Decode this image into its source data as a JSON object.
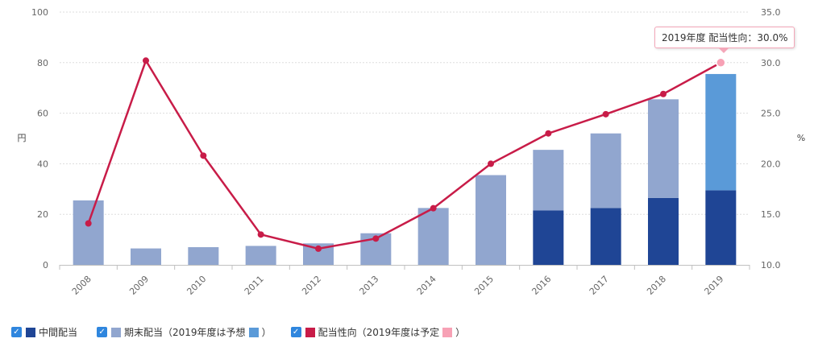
{
  "chart_data": {
    "type": "bar",
    "categories": [
      "2008",
      "2009",
      "2010",
      "2011",
      "2012",
      "2013",
      "2014",
      "2015",
      "2016",
      "2017",
      "2018",
      "2019"
    ],
    "series": [
      {
        "name": "中間配当",
        "color": "#1f4595",
        "values": [
          0,
          0,
          0,
          0,
          0,
          0,
          0,
          0,
          21.5,
          22.5,
          26.5,
          29.5
        ]
      },
      {
        "name": "期末配当",
        "color": "#91a6cf",
        "values": [
          25.5,
          6.5,
          7,
          7.5,
          8.5,
          12.5,
          22.5,
          35.5,
          24,
          29.5,
          39,
          0
        ]
      },
      {
        "name": "期末配当 (2019年度は予想)",
        "color": "#5a9ad8",
        "values": [
          0,
          0,
          0,
          0,
          0,
          0,
          0,
          0,
          0,
          0,
          0,
          46
        ]
      },
      {
        "name": "配当性向",
        "type": "line",
        "axis": "right",
        "color": "#c81c48",
        "values": [
          14.1,
          30.2,
          20.8,
          13.0,
          11.6,
          12.6,
          15.6,
          20.0,
          23.0,
          24.9,
          26.9,
          30.0
        ]
      }
    ],
    "ylabel_left": "円",
    "ylabel_right": "%",
    "ylim_left": [
      0,
      100
    ],
    "ylim_right": [
      10,
      35
    ],
    "yticks_left": [
      "0",
      "20",
      "40",
      "60",
      "80",
      "100"
    ],
    "yticks_right": [
      "10.0",
      "15.0",
      "20.0",
      "25.0",
      "30.0",
      "35.0"
    ],
    "grid": true,
    "tooltip": "2019年度 配当性向：30.0%"
  },
  "legend": {
    "item1": "中間配当",
    "item2_prefix": "期末配当（2019年度は予想",
    "item2_suffix": "）",
    "item3_prefix": "配当性向（2019年度は予定",
    "item3_suffix": "）",
    "forecast_bar_color": "#5a9ad8",
    "forecast_point_color": "#f7a1b5"
  }
}
